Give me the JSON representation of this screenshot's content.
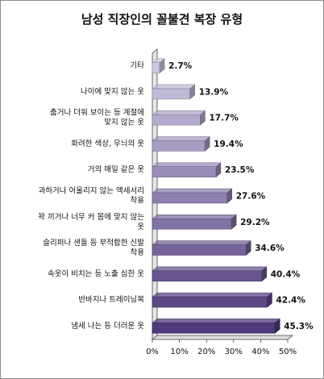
{
  "chart_data": {
    "type": "bar",
    "orientation": "horizontal",
    "title": "남성 직장인의 꼴불견 복장 유형",
    "categories": [
      [
        "기타"
      ],
      [
        "나이에 맞지 않는 옷"
      ],
      [
        "춥거나 더워 보이는 등 계절에",
        "맞지 않는 옷"
      ],
      [
        "화려한 색상, 무늬의 옷"
      ],
      [
        "거의 매일 같은 옷"
      ],
      [
        "과하거나 어울리지 않는 액세서리",
        "착용"
      ],
      [
        "꽉 끼거나 너무 커 몸에 맞지 않는",
        "옷"
      ],
      [
        "슬리퍼나 샌들 등 부적합한 신발",
        "착용"
      ],
      [
        "속옷이 비치는 등 노출 심한 옷"
      ],
      [
        "반바지나 트레이닝복"
      ],
      [
        "냄새 나는 등 더러운 옷"
      ]
    ],
    "values": [
      2.7,
      13.9,
      17.7,
      19.4,
      23.5,
      27.6,
      29.2,
      34.6,
      40.4,
      42.4,
      45.3
    ],
    "value_labels": [
      "2.7%",
      "13.9%",
      "17.7%",
      "19.4%",
      "23.5%",
      "27.6%",
      "29.2%",
      "34.6%",
      "40.4%",
      "42.4%",
      "45.3%"
    ],
    "xlim": [
      0,
      50
    ],
    "ticks": [
      0,
      10,
      20,
      30,
      40,
      50
    ],
    "tick_labels": [
      "0%",
      "10%",
      "20%",
      "30%",
      "40%",
      "50%"
    ],
    "colors": {
      "bar_light": "#cdc6e2",
      "bar_dark": "#4e3a7a",
      "axis": "#444444"
    }
  }
}
